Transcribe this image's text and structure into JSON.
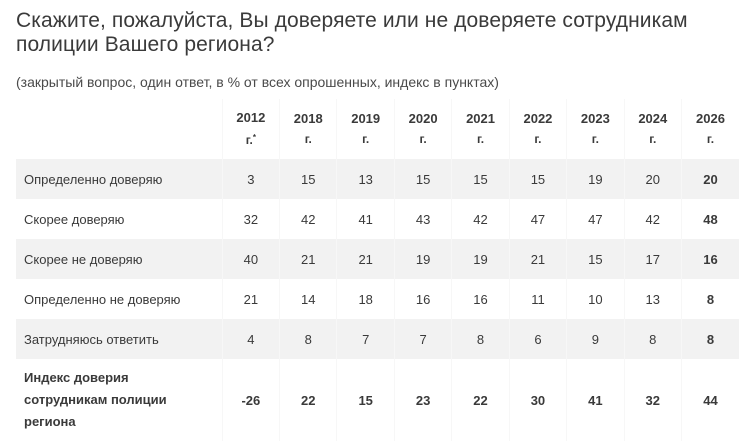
{
  "title": "Скажите, пожалуйста, Вы доверяете или не доверяете сотрудникам полиции Вашего региона?",
  "subtitle": "(закрытый вопрос, один ответ, в % от всех опрошенных, индекс в пунктах)",
  "table": {
    "header": {
      "label": "",
      "years": [
        {
          "year": "2012",
          "suffix": "г.",
          "mark": "*"
        },
        {
          "year": "2018",
          "suffix": "г.",
          "mark": ""
        },
        {
          "year": "2019",
          "suffix": "г.",
          "mark": ""
        },
        {
          "year": "2020",
          "suffix": "г.",
          "mark": ""
        },
        {
          "year": "2021",
          "suffix": "г.",
          "mark": ""
        },
        {
          "year": "2022",
          "suffix": "г.",
          "mark": ""
        },
        {
          "year": "2023",
          "suffix": "г.",
          "mark": ""
        },
        {
          "year": "2024",
          "suffix": "г.",
          "mark": ""
        },
        {
          "year": "2026",
          "suffix": "г.",
          "mark": ""
        }
      ]
    },
    "rows": [
      {
        "label": "Определенно доверяю",
        "values": [
          "3",
          "15",
          "13",
          "15",
          "15",
          "15",
          "19",
          "20",
          "20"
        ]
      },
      {
        "label": "Скорее доверяю",
        "values": [
          "32",
          "42",
          "41",
          "43",
          "42",
          "47",
          "47",
          "42",
          "48"
        ]
      },
      {
        "label": "Скорее не доверяю",
        "values": [
          "40",
          "21",
          "21",
          "19",
          "19",
          "21",
          "15",
          "17",
          "16"
        ]
      },
      {
        "label": "Определенно не доверяю",
        "values": [
          "21",
          "14",
          "18",
          "16",
          "16",
          "11",
          "10",
          "13",
          "8"
        ]
      },
      {
        "label": "Затрудняюсь ответить",
        "values": [
          "4",
          "8",
          "7",
          "7",
          "8",
          "6",
          "9",
          "8",
          "8"
        ]
      }
    ],
    "index_row": {
      "label_lines": [
        "Индекс доверия",
        "сотрудникам полиции",
        "региона"
      ],
      "values": [
        "-26",
        "22",
        "15",
        "23",
        "22",
        "30",
        "41",
        "32",
        "44"
      ]
    }
  }
}
